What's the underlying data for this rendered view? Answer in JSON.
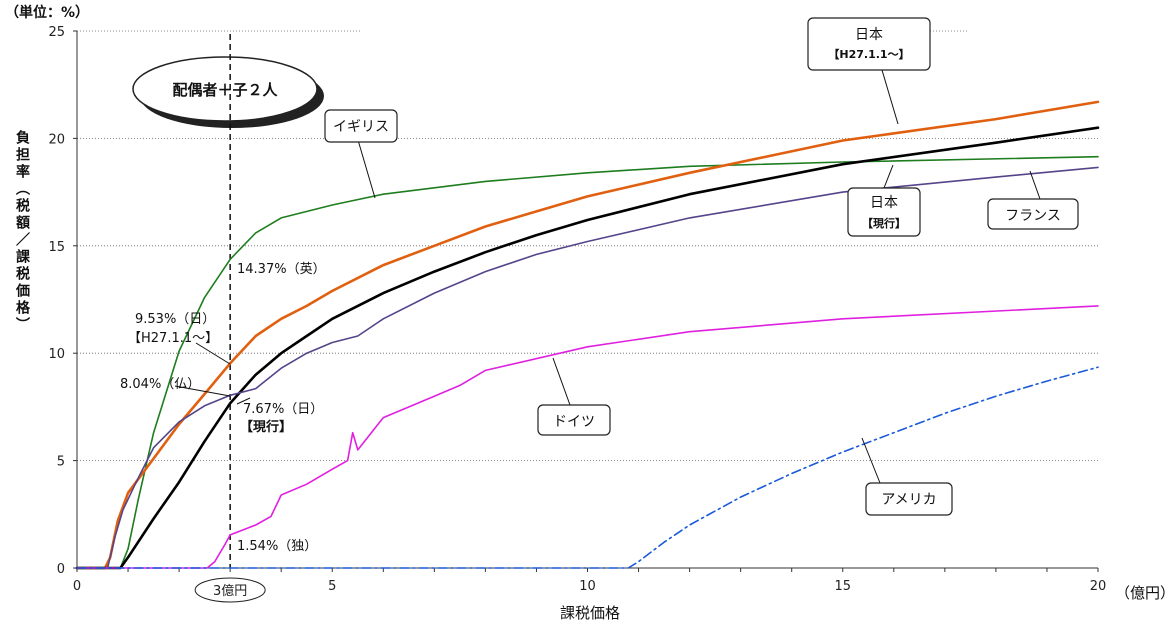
{
  "chart_data": {
    "type": "line",
    "unit_label": "（単位：%）",
    "ylabel": "負担率（税額／課税価格）",
    "xlabel": "課税価格",
    "x_unit": "（億円）",
    "xlim": [
      0,
      20
    ],
    "ylim": [
      0,
      25
    ],
    "x_ticks": [
      0,
      5,
      10,
      15,
      20
    ],
    "y_ticks": [
      0,
      5,
      10,
      15,
      20,
      25
    ],
    "family_label": "配偶者＋子２人",
    "marker": {
      "x": 3,
      "label": "3億円"
    },
    "series": [
      {
        "name": "イギリス",
        "color": "#1e7d1e",
        "style": "solid",
        "points": [
          [
            0,
            0
          ],
          [
            0.85,
            0
          ],
          [
            1,
            0.9
          ],
          [
            1.2,
            3.2
          ],
          [
            1.5,
            6.3
          ],
          [
            2,
            10.1
          ],
          [
            2.5,
            12.6
          ],
          [
            3,
            14.37
          ],
          [
            3.5,
            15.6
          ],
          [
            4,
            16.3
          ],
          [
            5,
            16.9
          ],
          [
            6,
            17.4
          ],
          [
            8,
            18.0
          ],
          [
            10,
            18.4
          ],
          [
            12,
            18.7
          ],
          [
            15,
            18.9
          ],
          [
            20,
            19.15
          ]
        ]
      },
      {
        "name": "日本【H27.1.1～】",
        "color": "#e06010",
        "style": "solid",
        "points": [
          [
            0,
            0
          ],
          [
            0.55,
            0
          ],
          [
            0.65,
            0.5
          ],
          [
            0.8,
            2.2
          ],
          [
            1,
            3.5
          ],
          [
            1.5,
            5.1
          ],
          [
            2,
            6.7
          ],
          [
            2.5,
            8.1
          ],
          [
            3,
            9.53
          ],
          [
            3.5,
            10.8
          ],
          [
            4,
            11.6
          ],
          [
            4.5,
            12.2
          ],
          [
            5,
            12.9
          ],
          [
            6,
            14.1
          ],
          [
            7,
            15.0
          ],
          [
            8,
            15.9
          ],
          [
            9,
            16.6
          ],
          [
            10,
            17.3
          ],
          [
            12,
            18.4
          ],
          [
            15,
            19.9
          ],
          [
            18,
            20.9
          ],
          [
            20,
            21.7
          ]
        ]
      },
      {
        "name": "日本【現行】",
        "color": "#000000",
        "style": "solid",
        "points": [
          [
            0,
            0
          ],
          [
            0.85,
            0
          ],
          [
            1,
            0.5
          ],
          [
            1.5,
            2.3
          ],
          [
            2,
            4.0
          ],
          [
            2.5,
            5.9
          ],
          [
            3,
            7.67
          ],
          [
            3.5,
            9.0
          ],
          [
            4,
            10.0
          ],
          [
            4.5,
            10.8
          ],
          [
            5,
            11.6
          ],
          [
            6,
            12.8
          ],
          [
            7,
            13.8
          ],
          [
            8,
            14.7
          ],
          [
            9,
            15.5
          ],
          [
            10,
            16.2
          ],
          [
            12,
            17.4
          ],
          [
            15,
            18.8
          ],
          [
            18,
            19.8
          ],
          [
            20,
            20.5
          ]
        ]
      },
      {
        "name": "フランス",
        "color": "#55448a",
        "style": "solid",
        "points": [
          [
            0,
            0
          ],
          [
            0.6,
            0
          ],
          [
            0.75,
            1.5
          ],
          [
            0.9,
            2.7
          ],
          [
            1.2,
            4.2
          ],
          [
            1.5,
            5.6
          ],
          [
            2,
            6.8
          ],
          [
            2.5,
            7.55
          ],
          [
            3,
            8.04
          ],
          [
            3.5,
            8.35
          ],
          [
            4,
            9.3
          ],
          [
            4.5,
            10.0
          ],
          [
            5,
            10.5
          ],
          [
            5.5,
            10.8
          ],
          [
            6,
            11.6
          ],
          [
            7,
            12.8
          ],
          [
            8,
            13.8
          ],
          [
            9,
            14.6
          ],
          [
            10,
            15.2
          ],
          [
            12,
            16.3
          ],
          [
            15,
            17.5
          ],
          [
            18,
            18.2
          ],
          [
            20,
            18.65
          ]
        ]
      },
      {
        "name": "ドイツ",
        "color": "#e020e0",
        "style": "solid",
        "points": [
          [
            0,
            0
          ],
          [
            2.55,
            0
          ],
          [
            2.7,
            0.3
          ],
          [
            2.9,
            1.1
          ],
          [
            3,
            1.54
          ],
          [
            3.5,
            2.0
          ],
          [
            3.8,
            2.4
          ],
          [
            4,
            3.4
          ],
          [
            4.5,
            3.9
          ],
          [
            5,
            4.6
          ],
          [
            5.3,
            5.0
          ],
          [
            5.4,
            6.3
          ],
          [
            5.5,
            5.5
          ],
          [
            5.8,
            6.4
          ],
          [
            6,
            7.0
          ],
          [
            7,
            8.0
          ],
          [
            7.5,
            8.5
          ],
          [
            8,
            9.2
          ],
          [
            10,
            10.3
          ],
          [
            12,
            11.0
          ],
          [
            15,
            11.6
          ],
          [
            20,
            12.2
          ]
        ]
      },
      {
        "name": "アメリカ",
        "color": "#1a5ad8",
        "style": "dashdot",
        "points": [
          [
            0,
            0
          ],
          [
            10.8,
            0
          ],
          [
            11,
            0.3
          ],
          [
            11.5,
            1.2
          ],
          [
            12,
            2.0
          ],
          [
            13,
            3.3
          ],
          [
            14,
            4.4
          ],
          [
            15,
            5.4
          ],
          [
            16,
            6.3
          ],
          [
            17,
            7.2
          ],
          [
            18,
            8.0
          ],
          [
            19,
            8.7
          ],
          [
            20,
            9.35
          ]
        ]
      }
    ],
    "annotations": [
      {
        "text": "14.37%（英）"
      },
      {
        "text": "9.53%（日）"
      },
      {
        "text": "【H27.1.1～】"
      },
      {
        "text": "8.04%（仏）"
      },
      {
        "text": "7.67%（日）"
      },
      {
        "text": "【現行】"
      },
      {
        "text": "1.54%（独）"
      }
    ],
    "legend_labels": {
      "uk": "イギリス",
      "japan_new_line1": "日本",
      "japan_new_line2": "【H27.1.1～】",
      "japan_cur_line1": "日本",
      "japan_cur_line2": "【現行】",
      "france": "フランス",
      "germany": "ドイツ",
      "usa": "アメリカ"
    }
  }
}
